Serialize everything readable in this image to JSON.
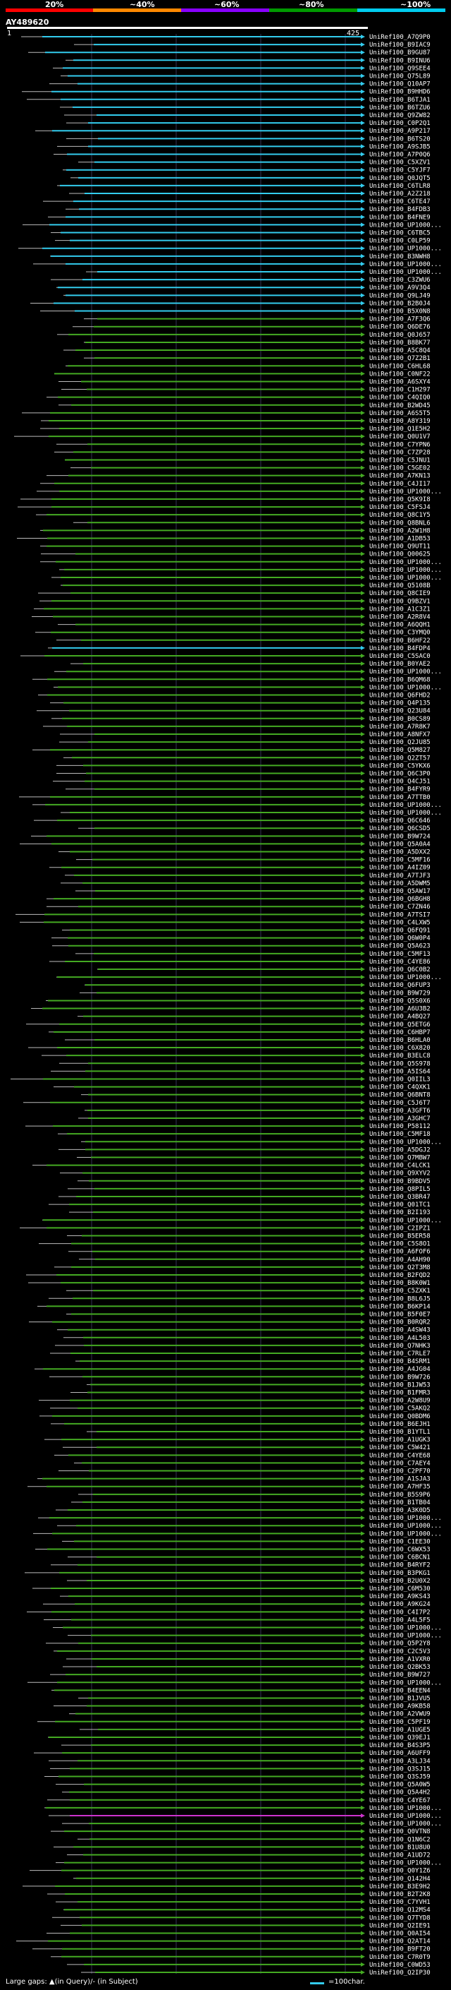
{
  "legend": {
    "segments": [
      {
        "label": "20%",
        "color": "#ff0000"
      },
      {
        "label": "~40%",
        "color": "#ff8800"
      },
      {
        "label": "~60%",
        "color": "#8800ff"
      },
      {
        "label": "~80%",
        "color": "#009900"
      },
      {
        "label": "~100%",
        "color": "#00ccee"
      }
    ]
  },
  "query": {
    "id": "AY489620",
    "start": "1",
    "end": "425"
  },
  "colors": {
    "high": "#33ccee",
    "mid": "#44aa22",
    "low": "#cc33cc",
    "connector": "#bbbbbb"
  },
  "hits": [
    "UniRef100_A7Q9P0",
    "UniRef100_B9IAC9",
    "UniRef100_B9GU87",
    "UniRef100_B9INU6",
    "UniRef100_Q9SEE4",
    "UniRef100_Q75L89",
    "UniRef100_Q10AP7",
    "UniRef100_B9HHD6",
    "UniRef100_B6TJA1",
    "UniRef100_B6TZU6",
    "UniRef100_Q9ZW82",
    "UniRef100_C0P2Q1",
    "UniRef100_A9P217",
    "UniRef100_B6TS20",
    "UniRef100_A9SJB5",
    "UniRef100_A7P0Q6",
    "UniRef100_C5XZV1",
    "UniRef100_C5YJF7",
    "UniRef100_Q0JQT5",
    "UniRef100_C6TLR8",
    "UniRef100_A2Z218",
    "UniRef100_C6TE47",
    "UniRef100_B4FDB3",
    "UniRef100_B4FNE9",
    "UniRef100_UP1000...",
    "UniRef100_C6TBC5",
    "UniRef100_C0LP59",
    "UniRef100_UP1000...",
    "UniRef100_B3NWH8",
    "UniRef100_UP1000...",
    "UniRef100_UP1000...",
    "UniRef100_C3ZWU6",
    "UniRef100_A9V3Q4",
    "UniRef100_Q9LJ49",
    "UniRef100_B2B0J4",
    "UniRef100_B5X0N8",
    "UniRef100_A7F3Q6",
    "UniRef100_Q6DE76",
    "UniRef100_Q0J657",
    "UniRef100_B8BK77",
    "UniRef100_A5C8Q4",
    "UniRef100_Q7Z2B1",
    "UniRef100_C6HL68",
    "UniRef100_C0NF22",
    "UniRef100_A6SXY4",
    "UniRef100_C1H297",
    "UniRef100_C4QIQ0",
    "UniRef100_B2WD45",
    "UniRef100_A6S5T5",
    "UniRef100_A8Y319",
    "UniRef100_Q1E5H2",
    "UniRef100_Q0U1V7",
    "UniRef100_C7YPN6",
    "UniRef100_C7ZP28",
    "UniRef100_C5JNU1",
    "UniRef100_C5GE02",
    "UniRef100_A7KN13",
    "UniRef100_C4JI17",
    "UniRef100_UP1000...",
    "UniRef100_Q5K9I8",
    "UniRef100_C5FSJ4",
    "UniRef100_Q8C1Y5",
    "UniRef100_Q8BNL6",
    "UniRef100_A2W1H8",
    "UniRef100_A1DB53",
    "UniRef100_Q9UT11",
    "UniRef100_Q00625",
    "UniRef100_UP1000...",
    "UniRef100_UP1000...",
    "UniRef100_UP1000...",
    "UniRef100_Q5108B",
    "UniRef100_Q8CIE9",
    "UniRef100_Q9BZV1",
    "UniRef100_A1C3Z1",
    "UniRef100_A2R8V4",
    "UniRef100_A6QQH1",
    "UniRef100_C3YMQ0",
    "UniRef100_B6HF22",
    "UniRef100_B4FDP4",
    "UniRef100_C5SAC0",
    "UniRef100_B0YAE2",
    "UniRef100_UP1000...",
    "UniRef100_B6QM68",
    "UniRef100_UP1000...",
    "UniRef100_Q6FHD2",
    "UniRef100_Q4P135",
    "UniRef100_Q23U84",
    "UniRef100_B0CS89",
    "UniRef100_A7R8K7",
    "UniRef100_A8NFX7",
    "UniRef100_Q2JU85",
    "UniRef100_Q5M827",
    "UniRef100_Q2ZT57",
    "UniRef100_C5YKX6",
    "UniRef100_Q6C3P0",
    "UniRef100_Q4CJ51",
    "UniRef100_B4FYR9",
    "UniRef100_A7TTB0",
    "UniRef100_UP1000...",
    "UniRef100_UP1000...",
    "UniRef100_Q6C646",
    "UniRef100_Q6CSD5",
    "UniRef100_B9W724",
    "UniRef100_Q5A0A4",
    "UniRef100_A5DXX2",
    "UniRef100_C5MF16",
    "UniRef100_A4IZ09",
    "UniRef100_A7TJF3",
    "UniRef100_A5DWM5",
    "UniRef100_Q5AW17",
    "UniRef100_Q6BGH8",
    "UniRef100_C7ZN46",
    "UniRef100_A7TSI7",
    "UniRef100_C4LXW5",
    "UniRef100_Q6FQ91",
    "UniRef100_Q6W0P4",
    "UniRef100_Q5A623",
    "UniRef100_C5MF13",
    "UniRef100_C4YE86",
    "UniRef100_Q6C0B2",
    "UniRef100_UP1000...",
    "UniRef100_Q6FUP3",
    "UniRef100_B9W729",
    "UniRef100_Q5S0X6",
    "UniRef100_A6U3B2",
    "UniRef100_A4BQ27",
    "UniRef100_Q5ETG6",
    "UniRef100_C6HBP7",
    "UniRef100_B6HLA0",
    "UniRef100_C6X820",
    "UniRef100_B3ELC8",
    "UniRef100_Q5S978",
    "UniRef100_A5IS64",
    "UniRef100_Q0IIL3",
    "UniRef100_C4QXK1",
    "UniRef100_Q6BNT8",
    "UniRef100_C5J6T7",
    "UniRef100_A3GFT6",
    "UniRef100_A3GHC7",
    "UniRef100_P58112",
    "UniRef100_C5MF18",
    "UniRef100_UP1000...",
    "UniRef100_A5DGJ2",
    "UniRef100_Q7MBW7",
    "UniRef100_C4LCK1",
    "UniRef100_Q9XYV2",
    "UniRef100_B9BDV5",
    "UniRef100_Q8PIL5",
    "UniRef100_Q3BR47",
    "UniRef100_Q01TC1",
    "UniRef100_B2I193",
    "UniRef100_UP1000...",
    "UniRef100_C2IPZ1",
    "UniRef100_B5ER58",
    "UniRef100_C5S8O1",
    "UniRef100_A6FOF6",
    "UniRef100_A4AH90",
    "UniRef100_Q2T3M8",
    "UniRef100_B2FQD2",
    "UniRef100_B8K0W1",
    "UniRef100_C5ZXK1",
    "UniRef100_B8L6J5",
    "UniRef100_B6KP14",
    "UniRef100_B5F0E7",
    "UniRef100_B0RQR2",
    "UniRef100_A4SW43",
    "UniRef100_A4L503",
    "UniRef100_Q7NHK3",
    "UniRef100_C7RLE7",
    "UniRef100_B4SRM1",
    "UniRef100_A4JG04",
    "UniRef100_B9W726",
    "UniRef100_B1JW53",
    "UniRef100_B1FMR3",
    "UniRef100_A2W8U9",
    "UniRef100_C5AKQ2",
    "UniRef100_Q0BDM6",
    "UniRef100_B6EJH1",
    "UniRef100_B1YTL1",
    "UniRef100_A1UGK3",
    "UniRef100_C5W421",
    "UniRef100_C4YE68",
    "UniRef100_C7AEY4",
    "UniRef100_C2PF70",
    "UniRef100_A1SJA3",
    "UniRef100_A7HF35",
    "UniRef100_B5S9P6",
    "UniRef100_B1TB04",
    "UniRef100_A3K0D5",
    "UniRef100_UP1000...",
    "UniRef100_UP1000...",
    "UniRef100_UP1000...",
    "UniRef100_C1EE30",
    "UniRef100_C6WX53",
    "UniRef100_C6BCN1",
    "UniRef100_B4RYF2",
    "UniRef100_B3PKG1",
    "UniRef100_B2U0X2",
    "UniRef100_C6M530",
    "UniRef100_A9KS43",
    "UniRef100_A9KG24",
    "UniRef100_C4I7P2",
    "UniRef100_A4L5F5",
    "UniRef100_UP1000...",
    "UniRef100_UP1000...",
    "UniRef100_Q5P2Y8",
    "UniRef100_C2C5V3",
    "UniRef100_A1VXR0",
    "UniRef100_Q2BK53",
    "UniRef100_B9W727",
    "UniRef100_UP1000...",
    "UniRef100_B4EEN4",
    "UniRef100_B1JVU5",
    "UniRef100_A9KB58",
    "UniRef100_A2VWU9",
    "UniRef100_C5PF19",
    "UniRef100_A1UGE5",
    "UniRef100_Q39EJ1",
    "UniRef100_B4S3P5",
    "UniRef100_A6UFF9",
    "UniRef100_A3LJ34",
    "UniRef100_Q3SJ15",
    "UniRef100_Q3SJ59",
    "UniRef100_Q5A0W5",
    "UniRef100_Q5A4H2",
    "UniRef100_C4YE67",
    "UniRef100_UP1000...",
    "UniRef100_UP1000...",
    "UniRef100_UP1000...",
    "UniRef100_Q0VTN8",
    "UniRef100_Q1N6C2",
    "UniRef100_B1U8U0",
    "UniRef100_A1UD72",
    "UniRef100_UP1000...",
    "UniRef100_Q0Y1Z6",
    "UniRef100_Q142H4",
    "UniRef100_B3E9H2",
    "UniRef100_B2T2K8",
    "UniRef100_C7YVH1",
    "UniRef100_Q12MS4",
    "UniRef100_Q7TYD8",
    "UniRef100_Q2IE91",
    "UniRef100_Q0AI54",
    "UniRef100_Q2AT14",
    "UniRef100_B9FT20",
    "UniRef100_C7R0T9",
    "UniRef100_C0WD53",
    "UniRef100_Q2IP30"
  ],
  "footer": {
    "gap_note": "Large gaps: ▲(in Query)/- (in Subject)",
    "scale_note": "=100char."
  }
}
